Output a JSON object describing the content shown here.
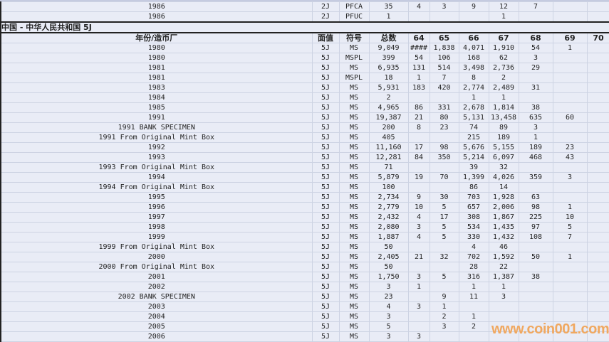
{
  "columns_widths_note": "",
  "prev_rows": [
    [
      "1986",
      "2J",
      "PFCA",
      "35",
      "4",
      "3",
      "9",
      "12",
      "7",
      "",
      ""
    ],
    [
      "1986",
      "2J",
      "PFUC",
      "1",
      "",
      "",
      "",
      "1",
      "",
      "",
      ""
    ]
  ],
  "section_title": "中国 - 中华人民共和国 5J",
  "headers": [
    "年份/造币厂",
    "面值",
    "符号",
    "总数",
    "64",
    "65",
    "66",
    "67",
    "68",
    "69",
    "70"
  ],
  "rows": [
    [
      "1980",
      "5J",
      "MS",
      "9,049",
      "####",
      "1,838",
      "4,071",
      "1,910",
      "54",
      "1",
      ""
    ],
    [
      "1980",
      "5J",
      "MSPL",
      "399",
      "54",
      "106",
      "168",
      "62",
      "3",
      "",
      ""
    ],
    [
      "1981",
      "5J",
      "MS",
      "6,935",
      "131",
      "514",
      "3,498",
      "2,736",
      "29",
      "",
      ""
    ],
    [
      "1981",
      "5J",
      "MSPL",
      "18",
      "1",
      "7",
      "8",
      "2",
      "",
      "",
      ""
    ],
    [
      "1983",
      "5J",
      "MS",
      "5,931",
      "183",
      "420",
      "2,774",
      "2,489",
      "31",
      "",
      ""
    ],
    [
      "1984",
      "5J",
      "MS",
      "2",
      "",
      "",
      "1",
      "1",
      "",
      "",
      ""
    ],
    [
      "1985",
      "5J",
      "MS",
      "4,965",
      "86",
      "331",
      "2,678",
      "1,814",
      "38",
      "",
      ""
    ],
    [
      "1991",
      "5J",
      "MS",
      "19,387",
      "21",
      "80",
      "5,131",
      "13,458",
      "635",
      "60",
      ""
    ],
    [
      "1991 BANK SPECIMEN",
      "5J",
      "MS",
      "200",
      "8",
      "23",
      "74",
      "89",
      "3",
      "",
      ""
    ],
    [
      "1991 From Original Mint Box",
      "5J",
      "MS",
      "405",
      "",
      "",
      "215",
      "189",
      "1",
      "",
      ""
    ],
    [
      "1992",
      "5J",
      "MS",
      "11,160",
      "17",
      "98",
      "5,676",
      "5,155",
      "189",
      "23",
      ""
    ],
    [
      "1993",
      "5J",
      "MS",
      "12,281",
      "84",
      "350",
      "5,214",
      "6,097",
      "468",
      "43",
      ""
    ],
    [
      "1993 From Original Mint Box",
      "5J",
      "MS",
      "71",
      "",
      "",
      "39",
      "32",
      "",
      "",
      ""
    ],
    [
      "1994",
      "5J",
      "MS",
      "5,879",
      "19",
      "70",
      "1,399",
      "4,026",
      "359",
      "3",
      ""
    ],
    [
      "1994 From Original Mint Box",
      "5J",
      "MS",
      "100",
      "",
      "",
      "86",
      "14",
      "",
      "",
      ""
    ],
    [
      "1995",
      "5J",
      "MS",
      "2,734",
      "9",
      "30",
      "703",
      "1,928",
      "63",
      "",
      ""
    ],
    [
      "1996",
      "5J",
      "MS",
      "2,779",
      "10",
      "5",
      "657",
      "2,006",
      "98",
      "1",
      ""
    ],
    [
      "1997",
      "5J",
      "MS",
      "2,432",
      "4",
      "17",
      "308",
      "1,867",
      "225",
      "10",
      ""
    ],
    [
      "1998",
      "5J",
      "MS",
      "2,080",
      "3",
      "5",
      "534",
      "1,435",
      "97",
      "5",
      ""
    ],
    [
      "1999",
      "5J",
      "MS",
      "1,887",
      "4",
      "5",
      "330",
      "1,432",
      "108",
      "7",
      ""
    ],
    [
      "1999 From Original Mint Box",
      "5J",
      "MS",
      "50",
      "",
      "",
      "4",
      "46",
      "",
      "",
      ""
    ],
    [
      "2000",
      "5J",
      "MS",
      "2,405",
      "21",
      "32",
      "702",
      "1,592",
      "50",
      "1",
      ""
    ],
    [
      "2000 From Original Mint Box",
      "5J",
      "MS",
      "50",
      "",
      "",
      "28",
      "22",
      "",
      "",
      ""
    ],
    [
      "2001",
      "5J",
      "MS",
      "1,750",
      "3",
      "5",
      "316",
      "1,387",
      "38",
      "",
      ""
    ],
    [
      "2002",
      "5J",
      "MS",
      "3",
      "1",
      "",
      "1",
      "1",
      "",
      "",
      ""
    ],
    [
      "2002 BANK SPECIMEN",
      "5J",
      "MS",
      "23",
      "",
      "9",
      "11",
      "3",
      "",
      "",
      ""
    ],
    [
      "2003",
      "5J",
      "MS",
      "4",
      "3",
      "1",
      "",
      "",
      "",
      "",
      ""
    ],
    [
      "2004",
      "5J",
      "MS",
      "3",
      "",
      "2",
      "1",
      "",
      "",
      "",
      ""
    ],
    [
      "2005",
      "5J",
      "MS",
      "5",
      "",
      "3",
      "2",
      "",
      "",
      "",
      ""
    ],
    [
      "2006",
      "5J",
      "MS",
      "3",
      "3",
      "",
      "",
      "",
      "",
      "",
      ""
    ]
  ],
  "watermark": "www.coin001.com"
}
